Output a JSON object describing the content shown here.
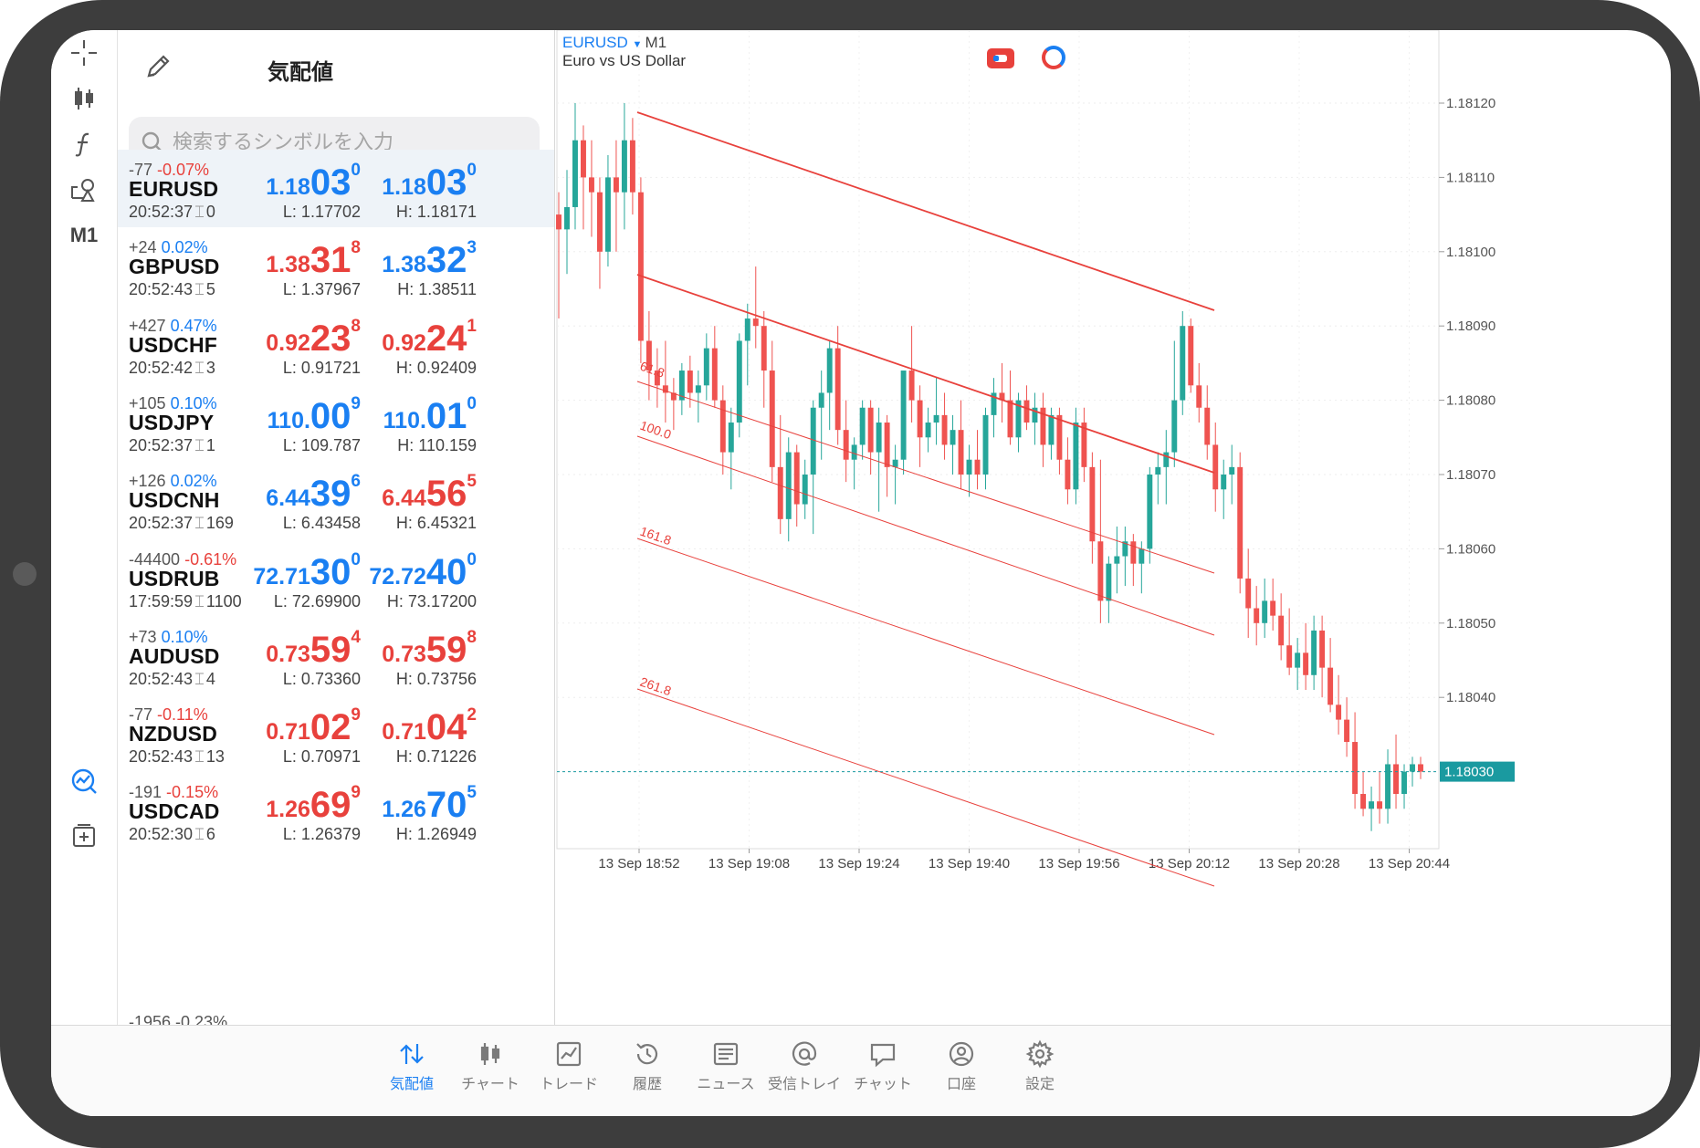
{
  "quotes_panel": {
    "title": "気配値",
    "search_placeholder": "検索するシンボルを入力",
    "rows": [
      {
        "change_pts": "-77",
        "change_pct": "-0.07%",
        "change_dir": "neg",
        "symbol": "EURUSD",
        "time": "20:52:37",
        "spread": "0",
        "bid": {
          "small": "1.18",
          "big": "03",
          "sup": "0",
          "color": "blue"
        },
        "ask": {
          "small": "1.18",
          "big": "03",
          "sup": "0",
          "color": "blue"
        },
        "low": "L: 1.17702",
        "high": "H: 1.18171",
        "selected": true
      },
      {
        "change_pts": "+24",
        "change_pct": "0.02%",
        "change_dir": "pos",
        "symbol": "GBPUSD",
        "time": "20:52:43",
        "spread": "5",
        "bid": {
          "small": "1.38",
          "big": "31",
          "sup": "8",
          "color": "red"
        },
        "ask": {
          "small": "1.38",
          "big": "32",
          "sup": "3",
          "color": "blue"
        },
        "low": "L: 1.37967",
        "high": "H: 1.38511",
        "selected": false
      },
      {
        "change_pts": "+427",
        "change_pct": "0.47%",
        "change_dir": "pos",
        "symbol": "USDCHF",
        "time": "20:52:42",
        "spread": "3",
        "bid": {
          "small": "0.92",
          "big": "23",
          "sup": "8",
          "color": "red"
        },
        "ask": {
          "small": "0.92",
          "big": "24",
          "sup": "1",
          "color": "red"
        },
        "low": "L: 0.91721",
        "high": "H: 0.92409",
        "selected": false
      },
      {
        "change_pts": "+105",
        "change_pct": "0.10%",
        "change_dir": "pos",
        "symbol": "USDJPY",
        "time": "20:52:37",
        "spread": "1",
        "bid": {
          "small": "110.",
          "big": "00",
          "sup": "9",
          "color": "blue"
        },
        "ask": {
          "small": "110.",
          "big": "01",
          "sup": "0",
          "color": "blue"
        },
        "low": "L: 109.787",
        "high": "H: 110.159",
        "selected": false
      },
      {
        "change_pts": "+126",
        "change_pct": "0.02%",
        "change_dir": "pos",
        "symbol": "USDCNH",
        "time": "20:52:37",
        "spread": "169",
        "bid": {
          "small": "6.44",
          "big": "39",
          "sup": "6",
          "color": "blue"
        },
        "ask": {
          "small": "6.44",
          "big": "56",
          "sup": "5",
          "color": "red"
        },
        "low": "L: 6.43458",
        "high": "H: 6.45321",
        "selected": false
      },
      {
        "change_pts": "-44400",
        "change_pct": "-0.61%",
        "change_dir": "neg",
        "symbol": "USDRUB",
        "time": "17:59:59",
        "spread": "1100",
        "bid": {
          "small": "72.71",
          "big": "30",
          "sup": "0",
          "color": "blue"
        },
        "ask": {
          "small": "72.72",
          "big": "40",
          "sup": "0",
          "color": "blue"
        },
        "low": "L: 72.69900",
        "high": "H: 73.17200",
        "selected": false
      },
      {
        "change_pts": "+73",
        "change_pct": "0.10%",
        "change_dir": "pos",
        "symbol": "AUDUSD",
        "time": "20:52:43",
        "spread": "4",
        "bid": {
          "small": "0.73",
          "big": "59",
          "sup": "4",
          "color": "red"
        },
        "ask": {
          "small": "0.73",
          "big": "59",
          "sup": "8",
          "color": "red"
        },
        "low": "L: 0.73360",
        "high": "H: 0.73756",
        "selected": false
      },
      {
        "change_pts": "-77",
        "change_pct": "-0.11%",
        "change_dir": "neg",
        "symbol": "NZDUSD",
        "time": "20:52:43",
        "spread": "13",
        "bid": {
          "small": "0.71",
          "big": "02",
          "sup": "9",
          "color": "red"
        },
        "ask": {
          "small": "0.71",
          "big": "04",
          "sup": "2",
          "color": "red"
        },
        "low": "L: 0.70971",
        "high": "H: 0.71226",
        "selected": false
      },
      {
        "change_pts": "-191",
        "change_pct": "-0.15%",
        "change_dir": "neg",
        "symbol": "USDCAD",
        "time": "20:52:30",
        "spread": "6",
        "bid": {
          "small": "1.26",
          "big": "69",
          "sup": "9",
          "color": "red"
        },
        "ask": {
          "small": "1.26",
          "big": "70",
          "sup": "5",
          "color": "blue"
        },
        "low": "L: 1.26379",
        "high": "H: 1.26949",
        "selected": false
      }
    ],
    "partial_row_text": "-1956  -0.23%"
  },
  "left_toolbar": {
    "icons": [
      "crosshair-icon",
      "candlestick-icon",
      "function-icon",
      "objects-icon"
    ],
    "timeframe": "M1",
    "bottom_icons": [
      "trading-signals-icon",
      "add-chart-icon"
    ]
  },
  "chart": {
    "symbol": "EURUSD",
    "timeframe": "M1",
    "description": "Euro vs US Dollar",
    "accent_up": "#26a69a",
    "accent_down": "#ef5350",
    "fibo_color": "#e8413c",
    "price_axis": [
      "1.18120",
      "1.18110",
      "1.18100",
      "1.18090",
      "1.18080",
      "1.18070",
      "1.18060",
      "1.18050",
      "1.18040"
    ],
    "current_price": "1.18030",
    "time_axis": [
      "13 Sep 18:52",
      "13 Sep 19:08",
      "13 Sep 19:24",
      "13 Sep 19:40",
      "13 Sep 19:56",
      "13 Sep 20:12",
      "13 Sep 20:28",
      "13 Sep 20:44"
    ],
    "fibo_levels": [
      "61.8",
      "100.0",
      "161.8",
      "261.8"
    ]
  },
  "chart_data": {
    "type": "candlestick",
    "ylim": [
      1.18022,
      1.18126
    ],
    "price_ticks": [
      1.1812,
      1.1811,
      1.181,
      1.1809,
      1.1808,
      1.1807,
      1.1806,
      1.1805,
      1.1804
    ],
    "current_price": 1.1803,
    "x_ticks": [
      "13 Sep 18:52",
      "13 Sep 19:08",
      "13 Sep 19:24",
      "13 Sep 19:40",
      "13 Sep 19:56",
      "13 Sep 20:12",
      "13 Sep 20:28",
      "13 Sep 20:44"
    ],
    "candles": [
      [
        1.18105,
        1.18108,
        1.18091,
        1.18103
      ],
      [
        1.18103,
        1.18111,
        1.18097,
        1.18106
      ],
      [
        1.18106,
        1.1812,
        1.18103,
        1.18115
      ],
      [
        1.18115,
        1.18117,
        1.18103,
        1.1811
      ],
      [
        1.1811,
        1.18115,
        1.18102,
        1.18108
      ],
      [
        1.18108,
        1.1811,
        1.18095,
        1.181
      ],
      [
        1.181,
        1.18113,
        1.18098,
        1.1811
      ],
      [
        1.1811,
        1.18115,
        1.181,
        1.18108
      ],
      [
        1.18108,
        1.1812,
        1.18103,
        1.18115
      ],
      [
        1.18115,
        1.18118,
        1.18105,
        1.18108
      ],
      [
        1.18108,
        1.1811,
        1.18085,
        1.18088
      ],
      [
        1.18088,
        1.18092,
        1.1808,
        1.18084
      ],
      [
        1.18084,
        1.18087,
        1.18079,
        1.18082
      ],
      [
        1.18082,
        1.18088,
        1.18077,
        1.18081
      ],
      [
        1.18081,
        1.18083,
        1.18076,
        1.1808
      ],
      [
        1.1808,
        1.18085,
        1.18078,
        1.18084
      ],
      [
        1.18084,
        1.18086,
        1.18079,
        1.18081
      ],
      [
        1.18081,
        1.18084,
        1.18077,
        1.18082
      ],
      [
        1.18082,
        1.18089,
        1.1808,
        1.18087
      ],
      [
        1.18087,
        1.1809,
        1.18079,
        1.1808
      ],
      [
        1.1808,
        1.18082,
        1.1807,
        1.18073
      ],
      [
        1.18073,
        1.18079,
        1.18068,
        1.18077
      ],
      [
        1.18077,
        1.18089,
        1.18075,
        1.18088
      ],
      [
        1.18088,
        1.18093,
        1.18082,
        1.18091
      ],
      [
        1.18091,
        1.18098,
        1.18087,
        1.1809
      ],
      [
        1.1809,
        1.18092,
        1.18079,
        1.18084
      ],
      [
        1.18084,
        1.18088,
        1.18069,
        1.18071
      ],
      [
        1.18071,
        1.18078,
        1.18062,
        1.18064
      ],
      [
        1.18064,
        1.18075,
        1.18061,
        1.18073
      ],
      [
        1.18073,
        1.18074,
        1.18063,
        1.18066
      ],
      [
        1.18066,
        1.18072,
        1.18064,
        1.1807
      ],
      [
        1.1807,
        1.1808,
        1.18062,
        1.18079
      ],
      [
        1.18079,
        1.18084,
        1.18072,
        1.18081
      ],
      [
        1.18081,
        1.18088,
        1.18076,
        1.18087
      ],
      [
        1.18087,
        1.1809,
        1.18074,
        1.18076
      ],
      [
        1.18076,
        1.1808,
        1.18069,
        1.18072
      ],
      [
        1.18072,
        1.18075,
        1.18068,
        1.18074
      ],
      [
        1.18074,
        1.1808,
        1.18072,
        1.18079
      ],
      [
        1.18079,
        1.1808,
        1.1807,
        1.18073
      ],
      [
        1.18073,
        1.18079,
        1.18065,
        1.18077
      ],
      [
        1.18077,
        1.18078,
        1.18067,
        1.18071
      ],
      [
        1.18071,
        1.18074,
        1.18066,
        1.18072
      ],
      [
        1.18072,
        1.18083,
        1.1807,
        1.18084
      ],
      [
        1.18084,
        1.1809,
        1.18077,
        1.1808
      ],
      [
        1.1808,
        1.18082,
        1.18071,
        1.18075
      ],
      [
        1.18075,
        1.18079,
        1.18073,
        1.18077
      ],
      [
        1.18077,
        1.18083,
        1.18074,
        1.18078
      ],
      [
        1.18078,
        1.18081,
        1.18072,
        1.18074
      ],
      [
        1.18074,
        1.18078,
        1.1807,
        1.18076
      ],
      [
        1.18076,
        1.1808,
        1.18068,
        1.1807
      ],
      [
        1.1807,
        1.18074,
        1.18067,
        1.18072
      ],
      [
        1.18072,
        1.18076,
        1.18068,
        1.1807
      ],
      [
        1.1807,
        1.18079,
        1.18068,
        1.18078
      ],
      [
        1.18078,
        1.18083,
        1.18075,
        1.18081
      ],
      [
        1.18081,
        1.18085,
        1.18077,
        1.1808
      ],
      [
        1.1808,
        1.18084,
        1.18074,
        1.18075
      ],
      [
        1.18075,
        1.18081,
        1.18073,
        1.1808
      ],
      [
        1.1808,
        1.18082,
        1.18076,
        1.18077
      ],
      [
        1.18077,
        1.18081,
        1.18074,
        1.18079
      ],
      [
        1.18079,
        1.18081,
        1.18071,
        1.18074
      ],
      [
        1.18074,
        1.18079,
        1.18072,
        1.18078
      ],
      [
        1.18078,
        1.18079,
        1.1807,
        1.18072
      ],
      [
        1.18072,
        1.18075,
        1.18066,
        1.18068
      ],
      [
        1.18068,
        1.18079,
        1.18066,
        1.18077
      ],
      [
        1.18077,
        1.18079,
        1.18069,
        1.18071
      ],
      [
        1.18071,
        1.18073,
        1.18058,
        1.18061
      ],
      [
        1.18061,
        1.18072,
        1.1805,
        1.18053
      ],
      [
        1.18053,
        1.18059,
        1.1805,
        1.18058
      ],
      [
        1.18058,
        1.18063,
        1.18054,
        1.18059
      ],
      [
        1.18059,
        1.18063,
        1.18055,
        1.18061
      ],
      [
        1.18061,
        1.18062,
        1.18055,
        1.18058
      ],
      [
        1.18058,
        1.18061,
        1.18054,
        1.1806
      ],
      [
        1.1806,
        1.18071,
        1.18058,
        1.1807
      ],
      [
        1.1807,
        1.18073,
        1.18066,
        1.18071
      ],
      [
        1.18071,
        1.18076,
        1.18066,
        1.18073
      ],
      [
        1.18073,
        1.18088,
        1.18071,
        1.1808
      ],
      [
        1.1808,
        1.18092,
        1.18078,
        1.1809
      ],
      [
        1.1809,
        1.18091,
        1.18081,
        1.18082
      ],
      [
        1.18082,
        1.18085,
        1.18077,
        1.18079
      ],
      [
        1.18079,
        1.18082,
        1.18072,
        1.18074
      ],
      [
        1.18074,
        1.18077,
        1.18065,
        1.18068
      ],
      [
        1.18068,
        1.18072,
        1.18064,
        1.1807
      ],
      [
        1.1807,
        1.18074,
        1.18066,
        1.18071
      ],
      [
        1.18071,
        1.18073,
        1.18054,
        1.18056
      ],
      [
        1.18056,
        1.1806,
        1.18048,
        1.18052
      ],
      [
        1.18052,
        1.18055,
        1.18047,
        1.1805
      ],
      [
        1.1805,
        1.18056,
        1.18048,
        1.18053
      ],
      [
        1.18053,
        1.18056,
        1.18049,
        1.18051
      ],
      [
        1.18051,
        1.18054,
        1.18045,
        1.18047
      ],
      [
        1.18047,
        1.18052,
        1.18043,
        1.18044
      ],
      [
        1.18044,
        1.18048,
        1.18041,
        1.18046
      ],
      [
        1.18046,
        1.1805,
        1.18041,
        1.18043
      ],
      [
        1.18043,
        1.18051,
        1.18041,
        1.18049
      ],
      [
        1.18049,
        1.18051,
        1.1804,
        1.18044
      ],
      [
        1.18044,
        1.18048,
        1.18038,
        1.18039
      ],
      [
        1.18039,
        1.18043,
        1.18035,
        1.18037
      ],
      [
        1.18037,
        1.1804,
        1.18032,
        1.18034
      ],
      [
        1.18034,
        1.18038,
        1.18025,
        1.18027
      ],
      [
        1.18027,
        1.1803,
        1.18024,
        1.18025
      ],
      [
        1.18025,
        1.18028,
        1.18022,
        1.18026
      ],
      [
        1.18026,
        1.1803,
        1.18023,
        1.18025
      ],
      [
        1.18025,
        1.18033,
        1.18023,
        1.18031
      ],
      [
        1.18031,
        1.18035,
        1.18025,
        1.18027
      ],
      [
        1.18027,
        1.18031,
        1.18025,
        1.1803
      ],
      [
        1.1803,
        1.18032,
        1.18028,
        1.18031
      ],
      [
        1.18031,
        1.18032,
        1.18029,
        1.1803
      ]
    ],
    "fibo_channel": {
      "levels": [
        "61.8",
        "100.0",
        "161.8",
        "261.8"
      ]
    }
  },
  "tabbar": {
    "items": [
      {
        "label": "気配値",
        "icon": "quotes-arrows-icon",
        "active": true
      },
      {
        "label": "チャート",
        "icon": "chart-candles-icon",
        "active": false
      },
      {
        "label": "トレード",
        "icon": "trade-line-icon",
        "active": false
      },
      {
        "label": "履歴",
        "icon": "history-clock-icon",
        "active": false
      },
      {
        "label": "ニュース",
        "icon": "news-icon",
        "active": false
      },
      {
        "label": "受信トレイ",
        "icon": "mail-at-icon",
        "active": false
      },
      {
        "label": "チャット",
        "icon": "chat-bubble-icon",
        "active": false
      },
      {
        "label": "口座",
        "icon": "account-icon",
        "active": false
      },
      {
        "label": "設定",
        "icon": "settings-gear-icon",
        "active": false
      }
    ]
  }
}
